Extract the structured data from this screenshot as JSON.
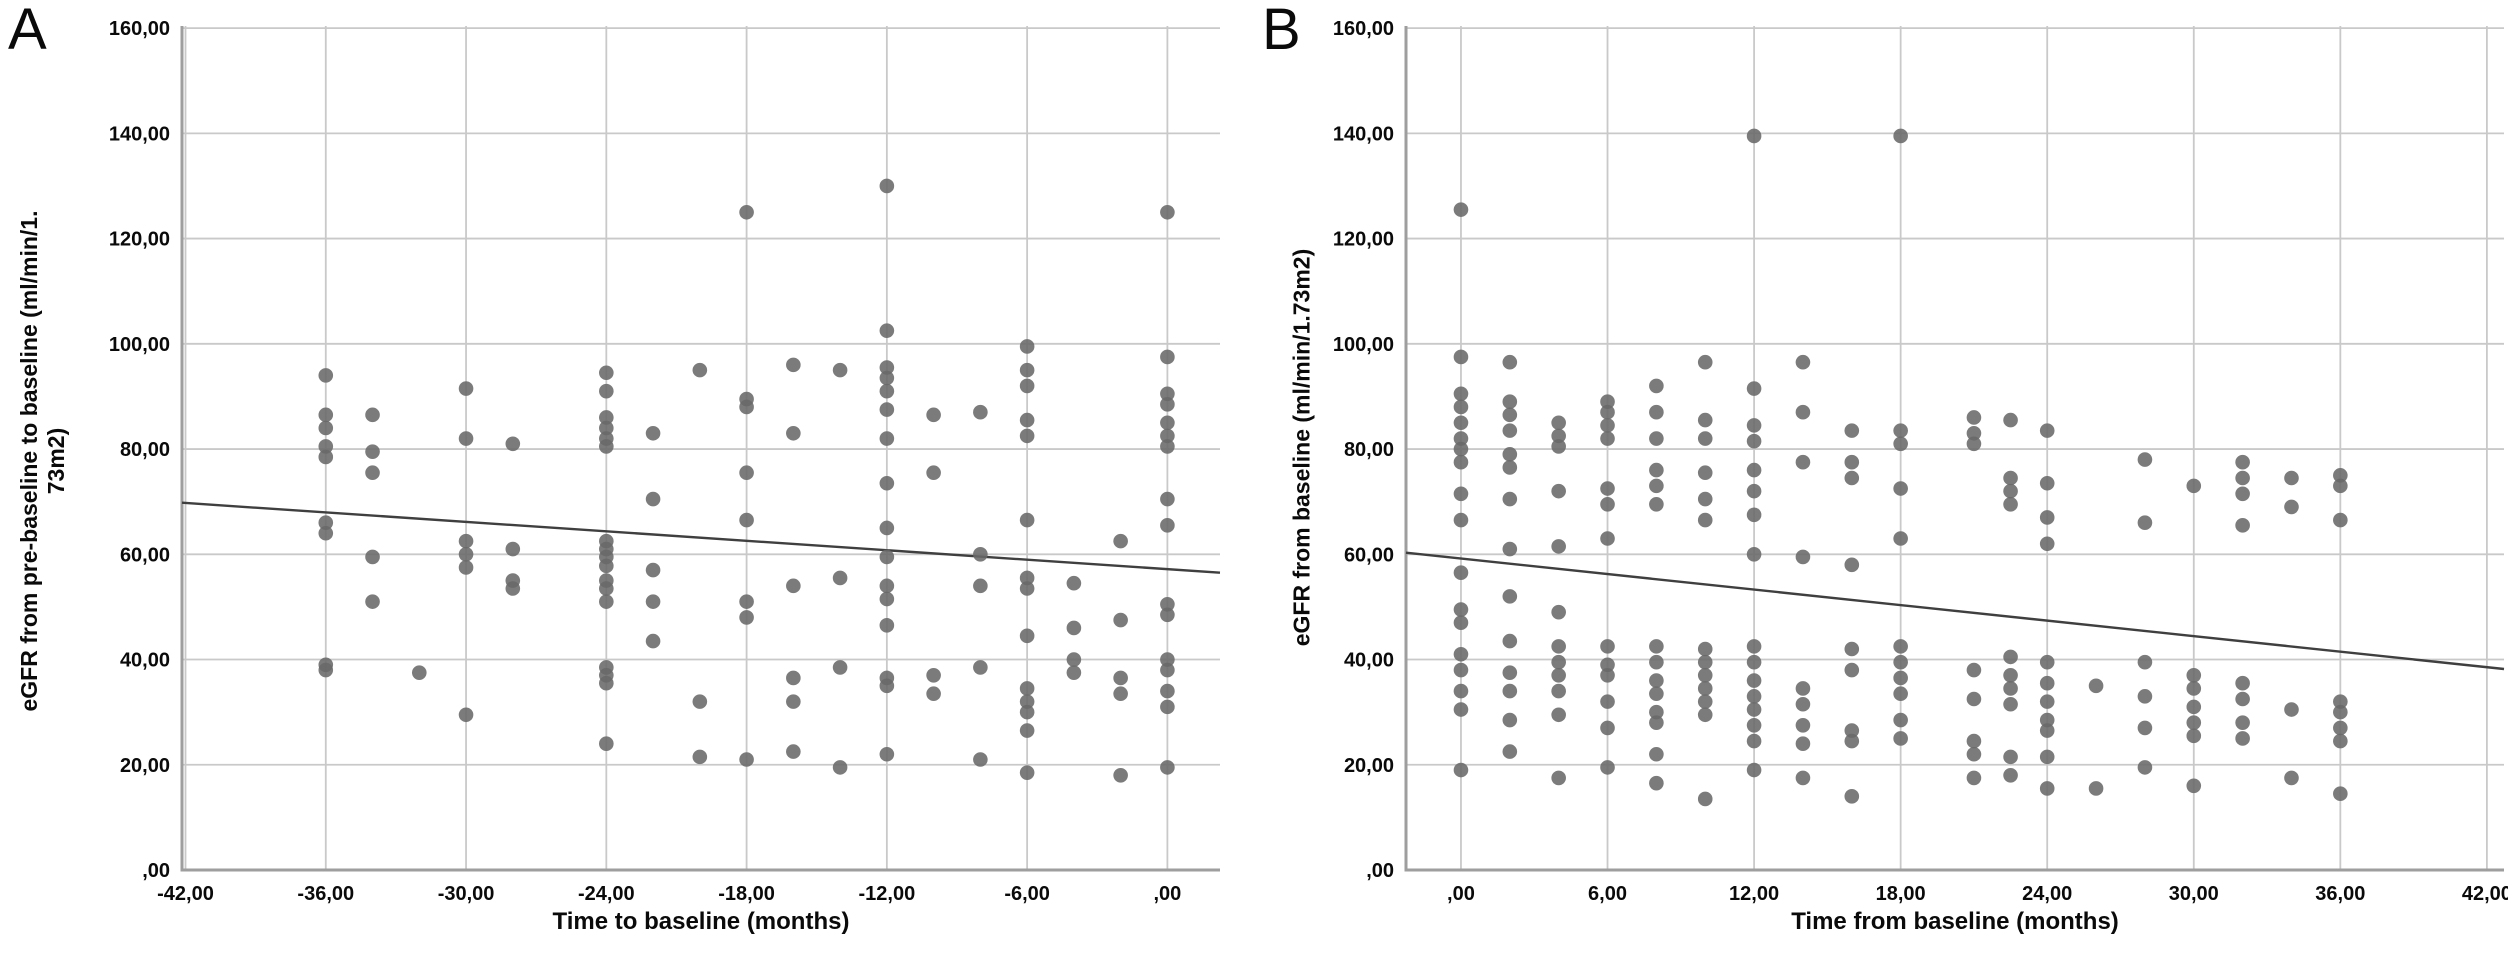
{
  "figure": {
    "type": "scatter-panels",
    "background": "#ffffff"
  },
  "colors": {
    "marker": "#696969",
    "trend_line": "#3f3f3f",
    "gridline": "#c9c9c9",
    "axis_line": "#9e9e9e",
    "text": "#0a0a0a",
    "background": "#ffffff"
  },
  "chart_data": [
    {
      "panel_label": "A",
      "type": "scatter",
      "xlabel": "Time to baseline (months)",
      "ylabel": "eGFR from pre-baseline to baseline (ml/min/1.73m2)",
      "ylabel_lines": [
        "eGFR from pre-baseline to baseline (ml/min/1.",
        "73m2)"
      ],
      "x_ticks": {
        "labels": [
          "-42,00",
          "-36,00",
          "-30,00",
          "-24,00",
          "-18,00",
          "-12,00",
          "-6,00",
          ",00"
        ],
        "values": [
          -42,
          -36,
          -30,
          -24,
          -18,
          -12,
          -6,
          0
        ]
      },
      "y_ticks": {
        "labels": [
          "160,00",
          "140,00",
          "120,00",
          "100,00",
          "80,00",
          "60,00",
          "40,00",
          "20,00",
          ",00"
        ],
        "values": [
          160,
          140,
          120,
          100,
          80,
          60,
          40,
          20,
          0
        ]
      },
      "x_range": [
        -42.15,
        2.25
      ],
      "y_range": [
        0,
        160.4
      ],
      "grid": true,
      "trend_line": {
        "x1": -42.15,
        "y1": 69.8,
        "x2": 2.25,
        "y2": 56.5
      },
      "points": [
        [
          -36,
          94
        ],
        [
          -36,
          86.5
        ],
        [
          -36,
          84
        ],
        [
          -36,
          80.5
        ],
        [
          -36,
          78.5
        ],
        [
          -36,
          66
        ],
        [
          -36,
          64
        ],
        [
          -36,
          39
        ],
        [
          -36,
          38
        ],
        [
          -34,
          86.5
        ],
        [
          -34,
          79.5
        ],
        [
          -34,
          75.5
        ],
        [
          -34,
          59.5
        ],
        [
          -34,
          51
        ],
        [
          -32,
          37.5
        ],
        [
          -30,
          91.5
        ],
        [
          -30,
          82
        ],
        [
          -30,
          62.5
        ],
        [
          -30,
          60
        ],
        [
          -30,
          57.5
        ],
        [
          -30,
          29.5
        ],
        [
          -28,
          81
        ],
        [
          -28,
          61
        ],
        [
          -28,
          55
        ],
        [
          -28,
          53.5
        ],
        [
          -24,
          94.5
        ],
        [
          -24,
          91
        ],
        [
          -24,
          86
        ],
        [
          -24,
          84
        ],
        [
          -24,
          82
        ],
        [
          -24,
          80.5
        ],
        [
          -24,
          62.5
        ],
        [
          -24,
          61
        ],
        [
          -24,
          59.5
        ],
        [
          -24,
          57.8
        ],
        [
          -24,
          55
        ],
        [
          -24,
          53.5
        ],
        [
          -24,
          51
        ],
        [
          -24,
          38.5
        ],
        [
          -24,
          37
        ],
        [
          -24,
          35.5
        ],
        [
          -24,
          24
        ],
        [
          -22,
          83
        ],
        [
          -22,
          70.5
        ],
        [
          -22,
          57
        ],
        [
          -22,
          51
        ],
        [
          -22,
          43.5
        ],
        [
          -20,
          95
        ],
        [
          -20,
          32
        ],
        [
          -20,
          21.5
        ],
        [
          -18,
          125
        ],
        [
          -18,
          89.5
        ],
        [
          -18,
          88
        ],
        [
          -18,
          75.5
        ],
        [
          -18,
          66.5
        ],
        [
          -18,
          51
        ],
        [
          -18,
          48
        ],
        [
          -18,
          21
        ],
        [
          -16,
          96
        ],
        [
          -16,
          83
        ],
        [
          -16,
          54
        ],
        [
          -16,
          36.5
        ],
        [
          -16,
          32
        ],
        [
          -16,
          22.5
        ],
        [
          -14,
          95
        ],
        [
          -14,
          55.5
        ],
        [
          -14,
          38.5
        ],
        [
          -14,
          19.5
        ],
        [
          -12,
          130
        ],
        [
          -12,
          102.5
        ],
        [
          -12,
          95.5
        ],
        [
          -12,
          93.5
        ],
        [
          -12,
          91
        ],
        [
          -12,
          87.5
        ],
        [
          -12,
          82
        ],
        [
          -12,
          73.5
        ],
        [
          -12,
          65
        ],
        [
          -12,
          59.5
        ],
        [
          -12,
          54
        ],
        [
          -12,
          51.5
        ],
        [
          -12,
          46.5
        ],
        [
          -12,
          36.5
        ],
        [
          -12,
          35
        ],
        [
          -12,
          22
        ],
        [
          -10,
          86.5
        ],
        [
          -10,
          75.5
        ],
        [
          -10,
          37
        ],
        [
          -10,
          33.5
        ],
        [
          -8,
          87
        ],
        [
          -8,
          60
        ],
        [
          -8,
          54
        ],
        [
          -8,
          38.5
        ],
        [
          -8,
          21
        ],
        [
          -6,
          99.5
        ],
        [
          -6,
          95
        ],
        [
          -6,
          92
        ],
        [
          -6,
          85.5
        ],
        [
          -6,
          82.5
        ],
        [
          -6,
          66.5
        ],
        [
          -6,
          55.5
        ],
        [
          -6,
          53.5
        ],
        [
          -6,
          44.5
        ],
        [
          -6,
          34.5
        ],
        [
          -6,
          32
        ],
        [
          -6,
          30
        ],
        [
          -6,
          26.5
        ],
        [
          -6,
          18.5
        ],
        [
          -4,
          54.5
        ],
        [
          -4,
          46
        ],
        [
          -4,
          40
        ],
        [
          -4,
          37.5
        ],
        [
          -2,
          62.5
        ],
        [
          -2,
          47.5
        ],
        [
          -2,
          36.5
        ],
        [
          -2,
          33.5
        ],
        [
          -2,
          18
        ],
        [
          0,
          125
        ],
        [
          0,
          97.5
        ],
        [
          0,
          90.5
        ],
        [
          0,
          88.5
        ],
        [
          0,
          85
        ],
        [
          0,
          82.5
        ],
        [
          0,
          80.5
        ],
        [
          0,
          70.5
        ],
        [
          0,
          65.5
        ],
        [
          0,
          50.5
        ],
        [
          0,
          48.5
        ],
        [
          0,
          40
        ],
        [
          0,
          38
        ],
        [
          0,
          34
        ],
        [
          0,
          31
        ],
        [
          0,
          19.5
        ]
      ]
    },
    {
      "panel_label": "B",
      "type": "scatter",
      "xlabel": "Time from baseline (months)",
      "ylabel": "eGFR from baseline (ml/min/1.73m2)",
      "ylabel_lines": [
        "eGFR from baseline (ml/min/1.73m2)"
      ],
      "x_ticks": {
        "labels": [
          ",00",
          "6,00",
          "12,00",
          "18,00",
          "24,00",
          "30,00",
          "36,00",
          "42,00"
        ],
        "values": [
          0,
          6,
          12,
          18,
          24,
          30,
          36,
          42
        ]
      },
      "y_ticks": {
        "labels": [
          "160,00",
          "140,00",
          "120,00",
          "100,00",
          "80,00",
          "60,00",
          "40,00",
          "20,00",
          ",00"
        ],
        "values": [
          160,
          140,
          120,
          100,
          80,
          60,
          40,
          20,
          0
        ]
      },
      "x_range": [
        -2.25,
        42.7
      ],
      "y_range": [
        0,
        160.4
      ],
      "grid": true,
      "trend_line": {
        "x1": -2.25,
        "y1": 60.3,
        "x2": 42.7,
        "y2": 38.2
      },
      "points": [
        [
          0,
          125.5
        ],
        [
          0,
          97.5
        ],
        [
          0,
          90.5
        ],
        [
          0,
          88
        ],
        [
          0,
          85
        ],
        [
          0,
          82
        ],
        [
          0,
          80
        ],
        [
          0,
          77.5
        ],
        [
          0,
          71.5
        ],
        [
          0,
          66.5
        ],
        [
          0,
          56.5
        ],
        [
          0,
          49.5
        ],
        [
          0,
          47
        ],
        [
          0,
          41
        ],
        [
          0,
          38
        ],
        [
          0,
          34
        ],
        [
          0,
          30.5
        ],
        [
          0,
          19
        ],
        [
          2,
          96.5
        ],
        [
          2,
          89
        ],
        [
          2,
          86.5
        ],
        [
          2,
          83.5
        ],
        [
          2,
          79
        ],
        [
          2,
          76.5
        ],
        [
          2,
          70.5
        ],
        [
          2,
          61
        ],
        [
          2,
          52
        ],
        [
          2,
          43.5
        ],
        [
          2,
          37.5
        ],
        [
          2,
          34
        ],
        [
          2,
          28.5
        ],
        [
          2,
          22.5
        ],
        [
          4,
          85
        ],
        [
          4,
          82.5
        ],
        [
          4,
          80.5
        ],
        [
          4,
          72
        ],
        [
          4,
          61.5
        ],
        [
          4,
          49
        ],
        [
          4,
          42.5
        ],
        [
          4,
          39.5
        ],
        [
          4,
          37
        ],
        [
          4,
          34
        ],
        [
          4,
          29.5
        ],
        [
          4,
          17.5
        ],
        [
          6,
          89
        ],
        [
          6,
          87
        ],
        [
          6,
          84.5
        ],
        [
          6,
          82
        ],
        [
          6,
          72.5
        ],
        [
          6,
          69.5
        ],
        [
          6,
          63
        ],
        [
          6,
          42.5
        ],
        [
          6,
          39
        ],
        [
          6,
          37
        ],
        [
          6,
          32
        ],
        [
          6,
          27
        ],
        [
          6,
          19.5
        ],
        [
          8,
          92
        ],
        [
          8,
          87
        ],
        [
          8,
          82
        ],
        [
          8,
          76
        ],
        [
          8,
          73
        ],
        [
          8,
          69.5
        ],
        [
          8,
          42.5
        ],
        [
          8,
          39.5
        ],
        [
          8,
          36
        ],
        [
          8,
          33.5
        ],
        [
          8,
          30
        ],
        [
          8,
          28
        ],
        [
          8,
          22
        ],
        [
          8,
          16.5
        ],
        [
          10,
          96.5
        ],
        [
          10,
          85.5
        ],
        [
          10,
          82
        ],
        [
          10,
          75.5
        ],
        [
          10,
          70.5
        ],
        [
          10,
          66.5
        ],
        [
          10,
          42
        ],
        [
          10,
          39.5
        ],
        [
          10,
          37
        ],
        [
          10,
          34.5
        ],
        [
          10,
          32
        ],
        [
          10,
          29.5
        ],
        [
          10,
          13.5
        ],
        [
          12,
          139.5
        ],
        [
          12,
          91.5
        ],
        [
          12,
          84.5
        ],
        [
          12,
          81.5
        ],
        [
          12,
          76
        ],
        [
          12,
          72
        ],
        [
          12,
          67.5
        ],
        [
          12,
          60
        ],
        [
          12,
          42.5
        ],
        [
          12,
          39.5
        ],
        [
          12,
          36
        ],
        [
          12,
          33
        ],
        [
          12,
          30.5
        ],
        [
          12,
          27.5
        ],
        [
          12,
          24.5
        ],
        [
          12,
          19
        ],
        [
          14,
          96.5
        ],
        [
          14,
          87
        ],
        [
          14,
          77.5
        ],
        [
          14,
          59.5
        ],
        [
          14,
          34.5
        ],
        [
          14,
          31.5
        ],
        [
          14,
          27.5
        ],
        [
          14,
          24
        ],
        [
          14,
          17.5
        ],
        [
          16,
          83.5
        ],
        [
          16,
          77.5
        ],
        [
          16,
          74.5
        ],
        [
          16,
          58
        ],
        [
          16,
          42
        ],
        [
          16,
          38
        ],
        [
          16,
          26.5
        ],
        [
          16,
          24.5
        ],
        [
          16,
          14
        ],
        [
          18,
          139.5
        ],
        [
          18,
          83.5
        ],
        [
          18,
          81
        ],
        [
          18,
          72.5
        ],
        [
          18,
          63
        ],
        [
          18,
          42.5
        ],
        [
          18,
          39.5
        ],
        [
          18,
          36.5
        ],
        [
          18,
          33.5
        ],
        [
          18,
          28.5
        ],
        [
          18,
          25
        ],
        [
          21,
          86
        ],
        [
          21,
          83
        ],
        [
          21,
          81
        ],
        [
          21,
          38
        ],
        [
          21,
          32.5
        ],
        [
          21,
          24.5
        ],
        [
          21,
          22
        ],
        [
          21,
          17.5
        ],
        [
          22.5,
          85.5
        ],
        [
          22.5,
          74.5
        ],
        [
          22.5,
          72
        ],
        [
          22.5,
          69.5
        ],
        [
          22.5,
          40.5
        ],
        [
          22.5,
          37
        ],
        [
          22.5,
          34.5
        ],
        [
          22.5,
          31.5
        ],
        [
          22.5,
          21.5
        ],
        [
          22.5,
          18
        ],
        [
          24,
          83.5
        ],
        [
          24,
          73.5
        ],
        [
          24,
          67
        ],
        [
          24,
          62
        ],
        [
          24,
          39.5
        ],
        [
          24,
          35.5
        ],
        [
          24,
          32
        ],
        [
          24,
          28.5
        ],
        [
          24,
          26.5
        ],
        [
          24,
          21.5
        ],
        [
          24,
          15.5
        ],
        [
          26,
          35
        ],
        [
          26,
          15.5
        ],
        [
          28,
          78
        ],
        [
          28,
          66
        ],
        [
          28,
          39.5
        ],
        [
          28,
          33
        ],
        [
          28,
          27
        ],
        [
          28,
          19.5
        ],
        [
          30,
          73
        ],
        [
          30,
          37
        ],
        [
          30,
          34.5
        ],
        [
          30,
          31
        ],
        [
          30,
          28
        ],
        [
          30,
          25.5
        ],
        [
          30,
          16
        ],
        [
          32,
          77.5
        ],
        [
          32,
          74.5
        ],
        [
          32,
          71.5
        ],
        [
          32,
          65.5
        ],
        [
          32,
          35.5
        ],
        [
          32,
          32.5
        ],
        [
          32,
          28
        ],
        [
          32,
          25
        ],
        [
          34,
          74.5
        ],
        [
          34,
          69
        ],
        [
          34,
          30.5
        ],
        [
          34,
          17.5
        ],
        [
          36,
          75
        ],
        [
          36,
          73
        ],
        [
          36,
          66.5
        ],
        [
          36,
          32
        ],
        [
          36,
          30
        ],
        [
          36,
          27
        ],
        [
          36,
          24.5
        ],
        [
          36,
          14.5
        ]
      ]
    }
  ]
}
